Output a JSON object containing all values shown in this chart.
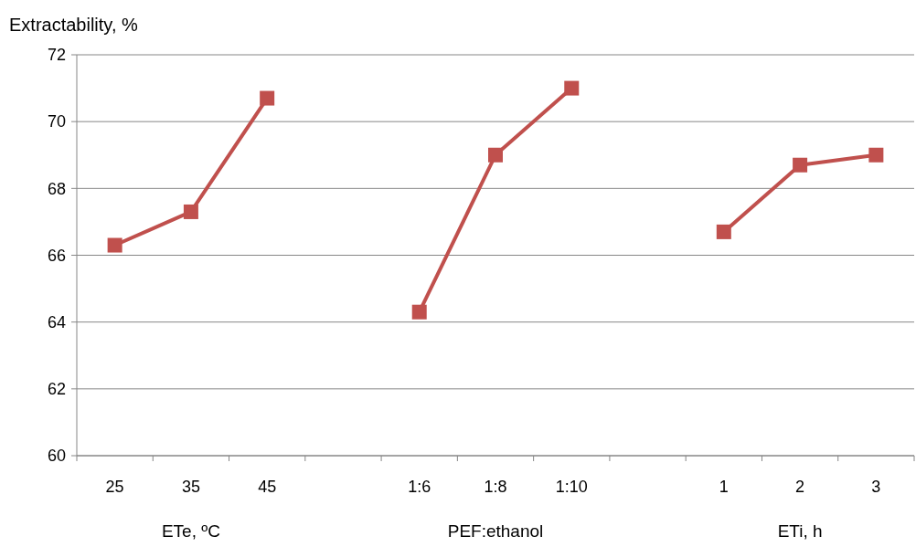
{
  "chart_data": {
    "type": "line",
    "ylabel": "Extractability, %",
    "categories": [
      "25",
      "35",
      "45",
      null,
      "1:6",
      "1:8",
      "1:10",
      null,
      "1",
      "2",
      "3"
    ],
    "series": [
      {
        "color": "#c0504d",
        "values": [
          66.3,
          67.3,
          70.7,
          null,
          64.3,
          69.0,
          71.0,
          null,
          66.7,
          68.7,
          69.0
        ]
      }
    ],
    "ylim": [
      60,
      72
    ],
    "yticks": [
      60,
      62,
      64,
      66,
      68,
      70,
      72
    ],
    "grid": "y",
    "marker": "square",
    "line_style": "solid",
    "annotations": [
      "ETe, ºC",
      "PEF:ethanol",
      "ETi, h"
    ]
  }
}
